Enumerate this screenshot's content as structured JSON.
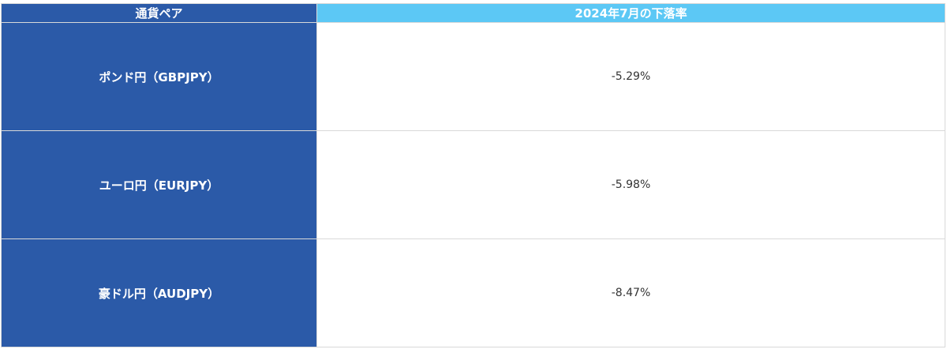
{
  "table": {
    "header": [
      "通貨ペア",
      "2024年7月の下落率"
    ],
    "rows": [
      [
        "ポンド円（GBPJPY）",
        "-5.29%"
      ],
      [
        "ユーロ円（EURJPY）",
        "-5.98%"
      ],
      [
        "豪ドル円（AUDJPY）",
        "-8.47%"
      ]
    ]
  }
}
